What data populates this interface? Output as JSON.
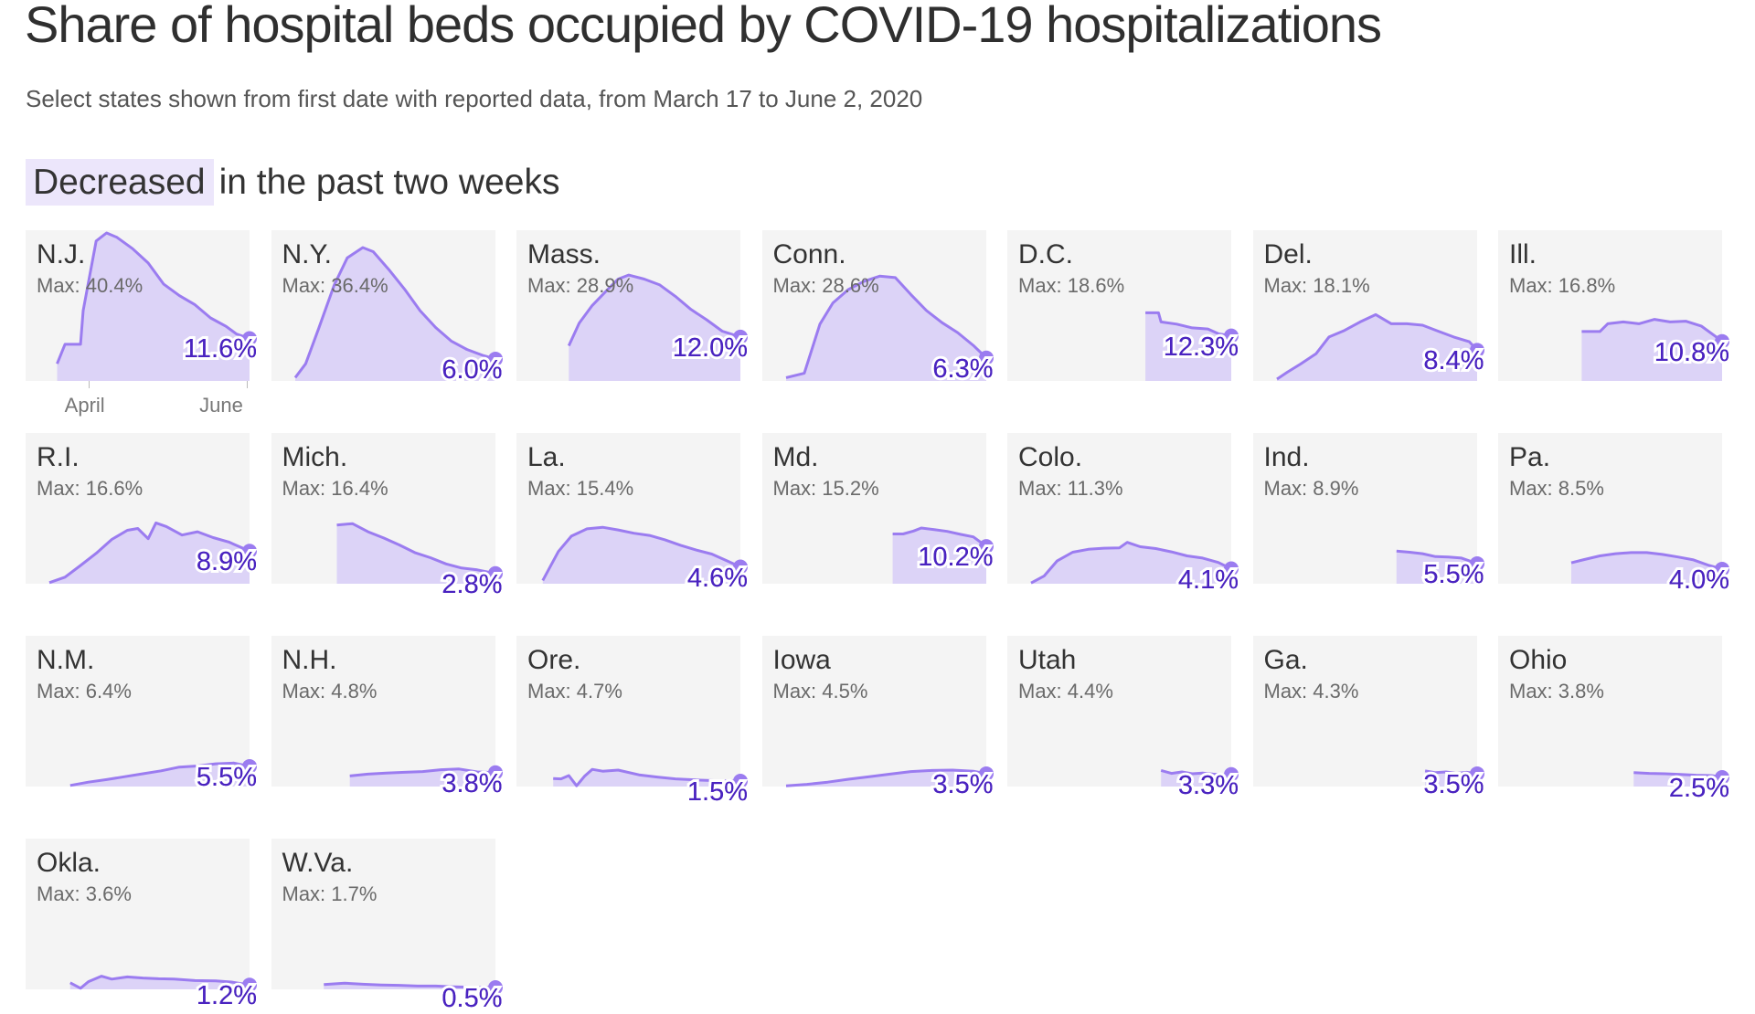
{
  "title": "Share of hospital beds occupied by COVID-19 hospitalizations",
  "subtitle": "Select states shown from first date with reported data, from March 17 to June 2, 2020",
  "section_highlight": "Decreased",
  "section_rest": "in the past two weeks",
  "colors": {
    "line": "#9b7cf0",
    "fill": "#dcd3f7",
    "panel": "#f4f4f4",
    "value_text": "#4a23c0",
    "highlight": "#ece6fb"
  },
  "chart_data": {
    "type": "area",
    "x_start": "2020-03-17",
    "x_end": "2020-06-02",
    "x_tick_labels": [
      "April",
      "June"
    ],
    "max_prefix": "Max:",
    "panels": [
      {
        "state": "N.J.",
        "max": "40.4%",
        "last": "11.6%",
        "x": [
          "2020-03-20",
          "2020-03-23",
          "2020-03-29",
          "2020-03-30",
          "2020-04-04",
          "2020-04-08",
          "2020-04-12",
          "2020-04-18",
          "2020-04-24",
          "2020-04-30",
          "2020-05-06",
          "2020-05-12",
          "2020-05-18",
          "2020-05-24",
          "2020-05-28",
          "2020-06-02"
        ],
        "y": [
          4.7,
          10.0,
          10.0,
          19.2,
          38.2,
          40.4,
          39.2,
          36.1,
          32.2,
          26.4,
          23.3,
          20.8,
          17.2,
          14.9,
          12.8,
          11.6
        ]
      },
      {
        "state": "N.Y.",
        "max": "36.4%",
        "last": "6.0%",
        "x": [
          "2020-03-17",
          "2020-03-21",
          "2020-03-26",
          "2020-04-01",
          "2020-04-06",
          "2020-04-12",
          "2020-04-16",
          "2020-04-22",
          "2020-04-28",
          "2020-05-04",
          "2020-05-10",
          "2020-05-16",
          "2020-05-22",
          "2020-05-28",
          "2020-06-02"
        ],
        "y": [
          0.9,
          4.7,
          14.3,
          26.2,
          33.6,
          36.4,
          35.3,
          30.4,
          25.1,
          19.2,
          14.6,
          10.9,
          8.6,
          7.0,
          6.0
        ]
      },
      {
        "state": "Mass.",
        "max": "28.9%",
        "last": "12.0%",
        "x": [
          "2020-03-28",
          "2020-04-01",
          "2020-04-06",
          "2020-04-12",
          "2020-04-16",
          "2020-04-20",
          "2020-04-26",
          "2020-05-02",
          "2020-05-08",
          "2020-05-14",
          "2020-05-20",
          "2020-05-26",
          "2020-06-02"
        ],
        "y": [
          9.6,
          15.8,
          20.6,
          25.0,
          27.8,
          28.9,
          27.8,
          26.2,
          23.1,
          19.5,
          16.7,
          13.6,
          12.0
        ]
      },
      {
        "state": "Conn.",
        "max": "28.6%",
        "last": "6.3%",
        "x": [
          "2020-03-17",
          "2020-03-24",
          "2020-03-30",
          "2020-04-04",
          "2020-04-10",
          "2020-04-16",
          "2020-04-22",
          "2020-04-28",
          "2020-05-04",
          "2020-05-10",
          "2020-05-16",
          "2020-05-22",
          "2020-05-28",
          "2020-06-02"
        ],
        "y": [
          0.9,
          2.1,
          15.5,
          21.3,
          25.0,
          27.2,
          28.6,
          28.2,
          23.6,
          19.2,
          15.9,
          13.2,
          9.7,
          6.3
        ]
      },
      {
        "state": "D.C.",
        "max": "18.6%",
        "last": "12.3%",
        "x": [
          "2020-04-30",
          "2020-05-05",
          "2020-05-06",
          "2020-05-12",
          "2020-05-18",
          "2020-05-24",
          "2020-05-28",
          "2020-06-02"
        ],
        "y": [
          18.6,
          18.6,
          16.1,
          15.5,
          14.5,
          14.2,
          12.9,
          12.3
        ]
      },
      {
        "state": "Del.",
        "max": "18.1%",
        "last": "8.4%",
        "x": [
          "2020-03-17",
          "2020-03-21",
          "2020-03-26",
          "2020-04-01",
          "2020-04-06",
          "2020-04-12",
          "2020-04-18",
          "2020-04-24",
          "2020-04-30",
          "2020-05-06",
          "2020-05-12",
          "2020-05-18",
          "2020-05-24",
          "2020-05-30",
          "2020-06-02"
        ],
        "y": [
          0.5,
          2.4,
          4.6,
          7.4,
          12.0,
          13.8,
          16.1,
          18.1,
          15.6,
          15.6,
          15.2,
          13.6,
          12.0,
          10.7,
          8.4
        ]
      },
      {
        "state": "Ill.",
        "max": "16.8%",
        "last": "10.8%",
        "x": [
          "2020-04-09",
          "2020-04-16",
          "2020-04-19",
          "2020-04-25",
          "2020-05-01",
          "2020-05-07",
          "2020-05-13",
          "2020-05-19",
          "2020-05-25",
          "2020-05-30",
          "2020-06-02"
        ],
        "y": [
          13.5,
          13.5,
          15.6,
          16.1,
          15.6,
          16.8,
          16.1,
          16.3,
          15.0,
          12.4,
          10.8
        ]
      },
      {
        "state": "R.I.",
        "max": "16.6%",
        "last": "8.9%",
        "x": [
          "2020-03-17",
          "2020-03-23",
          "2020-03-29",
          "2020-04-04",
          "2020-04-10",
          "2020-04-16",
          "2020-04-20",
          "2020-04-24",
          "2020-04-27",
          "2020-05-01",
          "2020-05-07",
          "2020-05-13",
          "2020-05-19",
          "2020-05-25",
          "2020-06-02"
        ],
        "y": [
          0.3,
          1.8,
          5.0,
          8.3,
          12.1,
          14.6,
          15.1,
          12.3,
          16.6,
          15.6,
          13.3,
          14.2,
          12.6,
          11.4,
          8.9
        ]
      },
      {
        "state": "Mich.",
        "max": "16.4%",
        "last": "2.8%",
        "x": [
          "2020-04-02",
          "2020-04-08",
          "2020-04-14",
          "2020-04-20",
          "2020-04-26",
          "2020-05-02",
          "2020-05-08",
          "2020-05-14",
          "2020-05-20",
          "2020-05-26",
          "2020-06-02"
        ],
        "y": [
          16.0,
          16.4,
          14.2,
          12.5,
          10.6,
          8.5,
          7.1,
          5.4,
          4.3,
          3.8,
          2.8
        ]
      },
      {
        "state": "La.",
        "max": "15.4%",
        "last": "4.6%",
        "x": [
          "2020-03-18",
          "2020-03-24",
          "2020-03-29",
          "2020-04-04",
          "2020-04-10",
          "2020-04-16",
          "2020-04-22",
          "2020-04-28",
          "2020-05-04",
          "2020-05-10",
          "2020-05-16",
          "2020-05-22",
          "2020-05-28",
          "2020-06-02"
        ],
        "y": [
          0.9,
          8.8,
          13.0,
          15.0,
          15.4,
          14.7,
          13.8,
          13.2,
          12.0,
          10.5,
          9.2,
          8.1,
          6.2,
          4.6
        ]
      },
      {
        "state": "Md.",
        "max": "15.2%",
        "last": "10.2%",
        "x": [
          "2020-04-27",
          "2020-05-01",
          "2020-05-05",
          "2020-05-08",
          "2020-05-13",
          "2020-05-18",
          "2020-05-23",
          "2020-05-28",
          "2020-06-02"
        ],
        "y": [
          13.6,
          13.6,
          14.4,
          15.2,
          14.8,
          14.3,
          13.5,
          12.8,
          10.2
        ]
      },
      {
        "state": "Colo.",
        "max": "11.3%",
        "last": "4.1%",
        "x": [
          "2020-03-17",
          "2020-03-22",
          "2020-03-27",
          "2020-04-02",
          "2020-04-08",
          "2020-04-14",
          "2020-04-20",
          "2020-04-23",
          "2020-04-28",
          "2020-05-04",
          "2020-05-10",
          "2020-05-16",
          "2020-05-22",
          "2020-05-28",
          "2020-06-02"
        ],
        "y": [
          0.2,
          2.1,
          6.2,
          8.6,
          9.4,
          9.7,
          9.8,
          11.3,
          10.1,
          9.6,
          8.7,
          7.6,
          7.0,
          5.8,
          4.1
        ]
      },
      {
        "state": "Ind.",
        "max": "8.9%",
        "last": "5.5%",
        "x": [
          "2020-05-02",
          "2020-05-07",
          "2020-05-12",
          "2020-05-17",
          "2020-05-22",
          "2020-05-27",
          "2020-06-02"
        ],
        "y": [
          8.9,
          8.6,
          8.2,
          7.4,
          7.3,
          7.0,
          5.5
        ]
      },
      {
        "state": "Pa.",
        "max": "8.5%",
        "last": "4.0%",
        "x": [
          "2020-04-05",
          "2020-04-10",
          "2020-04-16",
          "2020-04-22",
          "2020-04-28",
          "2020-05-04",
          "2020-05-10",
          "2020-05-16",
          "2020-05-22",
          "2020-05-28",
          "2020-06-02"
        ],
        "y": [
          5.7,
          6.6,
          7.6,
          8.2,
          8.5,
          8.5,
          8.0,
          7.3,
          6.5,
          5.0,
          4.0
        ]
      },
      {
        "state": "N.M.",
        "max": "6.4%",
        "last": "5.5%",
        "x": [
          "2020-03-25",
          "2020-04-01",
          "2020-04-08",
          "2020-04-15",
          "2020-04-22",
          "2020-04-29",
          "2020-05-06",
          "2020-05-13",
          "2020-05-20",
          "2020-05-27",
          "2020-06-02"
        ],
        "y": [
          0.3,
          1.2,
          1.9,
          2.7,
          3.5,
          4.3,
          5.3,
          5.6,
          6.2,
          6.4,
          5.5
        ]
      },
      {
        "state": "N.H.",
        "max": "4.8%",
        "last": "3.8%",
        "x": [
          "2020-04-07",
          "2020-04-14",
          "2020-04-21",
          "2020-04-28",
          "2020-05-05",
          "2020-05-12",
          "2020-05-19",
          "2020-05-26",
          "2020-06-02"
        ],
        "y": [
          2.9,
          3.4,
          3.7,
          3.9,
          4.1,
          4.6,
          4.8,
          4.0,
          3.8
        ]
      },
      {
        "state": "Ore.",
        "max": "4.7%",
        "last": "1.5%",
        "x": [
          "2020-03-22",
          "2020-03-25",
          "2020-03-28",
          "2020-03-31",
          "2020-04-03",
          "2020-04-06",
          "2020-04-10",
          "2020-04-16",
          "2020-04-24",
          "2020-05-01",
          "2020-05-08",
          "2020-05-16",
          "2020-05-24",
          "2020-06-02"
        ],
        "y": [
          2.2,
          2.1,
          3.0,
          0.2,
          2.8,
          4.7,
          4.2,
          4.5,
          3.2,
          2.6,
          2.1,
          1.8,
          1.6,
          1.5
        ]
      },
      {
        "state": "Iowa",
        "max": "4.5%",
        "last": "3.5%",
        "x": [
          "2020-03-17",
          "2020-03-25",
          "2020-04-02",
          "2020-04-10",
          "2020-04-18",
          "2020-04-26",
          "2020-05-04",
          "2020-05-12",
          "2020-05-20",
          "2020-05-28",
          "2020-06-02"
        ],
        "y": [
          0.2,
          0.6,
          1.2,
          2.0,
          2.7,
          3.4,
          4.1,
          4.4,
          4.5,
          4.2,
          3.5
        ]
      },
      {
        "state": "Utah",
        "max": "4.4%",
        "last": "3.3%",
        "x": [
          "2020-05-06",
          "2020-05-10",
          "2020-05-14",
          "2020-05-18",
          "2020-05-22",
          "2020-05-26",
          "2020-05-30",
          "2020-06-02"
        ],
        "y": [
          4.4,
          3.6,
          4.0,
          3.5,
          3.7,
          3.4,
          3.2,
          3.3
        ]
      },
      {
        "state": "Ga.",
        "max": "4.3%",
        "last": "3.5%",
        "x": [
          "2020-05-13",
          "2020-05-17",
          "2020-05-21",
          "2020-05-25",
          "2020-05-29",
          "2020-06-02"
        ],
        "y": [
          4.3,
          3.8,
          4.0,
          3.6,
          3.9,
          3.5
        ]
      },
      {
        "state": "Ohio",
        "max": "3.8%",
        "last": "2.5%",
        "x": [
          "2020-04-29",
          "2020-05-05",
          "2020-05-11",
          "2020-05-17",
          "2020-05-23",
          "2020-05-29",
          "2020-06-02"
        ],
        "y": [
          3.8,
          3.6,
          3.5,
          3.3,
          3.1,
          3.0,
          2.5
        ]
      },
      {
        "state": "Okla.",
        "max": "3.6%",
        "last": "1.2%",
        "x": [
          "2020-03-25",
          "2020-03-29",
          "2020-04-01",
          "2020-04-06",
          "2020-04-10",
          "2020-04-16",
          "2020-04-22",
          "2020-04-28",
          "2020-05-04",
          "2020-05-12",
          "2020-05-20",
          "2020-05-26",
          "2020-06-02"
        ],
        "y": [
          1.8,
          0.3,
          2.1,
          3.6,
          2.8,
          3.4,
          3.1,
          2.9,
          2.8,
          2.4,
          2.3,
          2.0,
          1.2
        ]
      },
      {
        "state": "W.Va.",
        "max": "1.7%",
        "last": "0.5%",
        "x": [
          "2020-03-28",
          "2020-04-05",
          "2020-04-12",
          "2020-04-19",
          "2020-04-26",
          "2020-05-03",
          "2020-05-10",
          "2020-05-17",
          "2020-05-24",
          "2020-06-02"
        ],
        "y": [
          1.3,
          1.7,
          1.4,
          1.2,
          1.1,
          0.9,
          0.9,
          0.7,
          0.6,
          0.5
        ]
      }
    ]
  }
}
